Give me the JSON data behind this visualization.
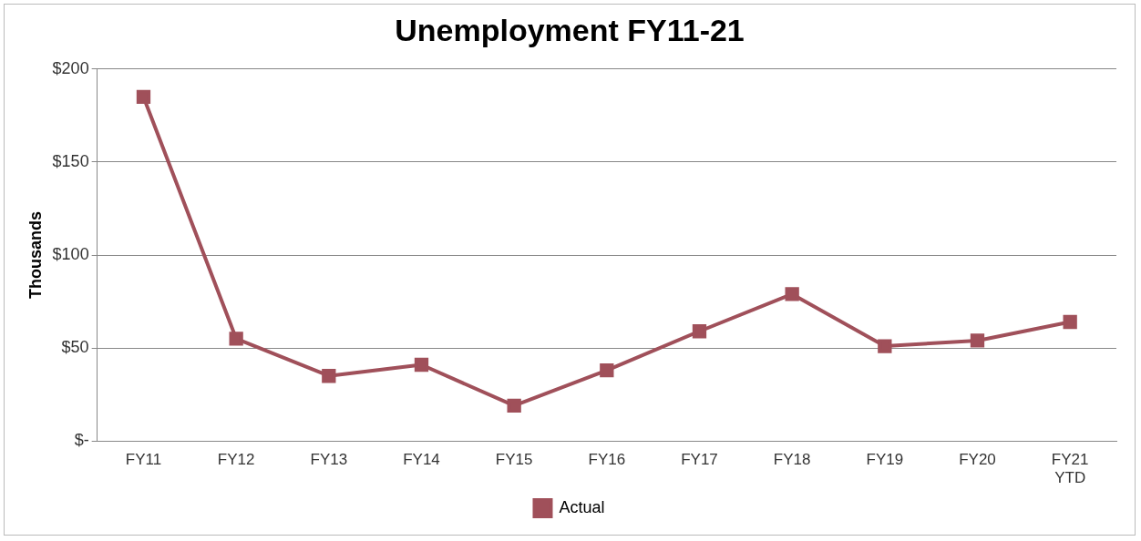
{
  "chart_data": {
    "type": "line",
    "title": "Unemployment FY11-21",
    "ylabel": "Thousands",
    "categories": [
      "FY11",
      "FY12",
      "FY13",
      "FY14",
      "FY15",
      "FY16",
      "FY17",
      "FY18",
      "FY19",
      "FY20",
      "FY21 YTD"
    ],
    "series": [
      {
        "name": "Actual",
        "color": "#a0505a",
        "values": [
          185,
          55,
          35,
          41,
          19,
          38,
          59,
          79,
          51,
          54,
          64
        ]
      }
    ],
    "ylim": [
      0,
      200
    ],
    "yticks": [
      {
        "value": 0,
        "label": "$-"
      },
      {
        "value": 50,
        "label": "$50"
      },
      {
        "value": 100,
        "label": "$100"
      },
      {
        "value": 150,
        "label": "$150"
      },
      {
        "value": 200,
        "label": "$200"
      }
    ],
    "grid": "y",
    "legend": "bottom",
    "marker": "square",
    "line_style": "solid"
  }
}
